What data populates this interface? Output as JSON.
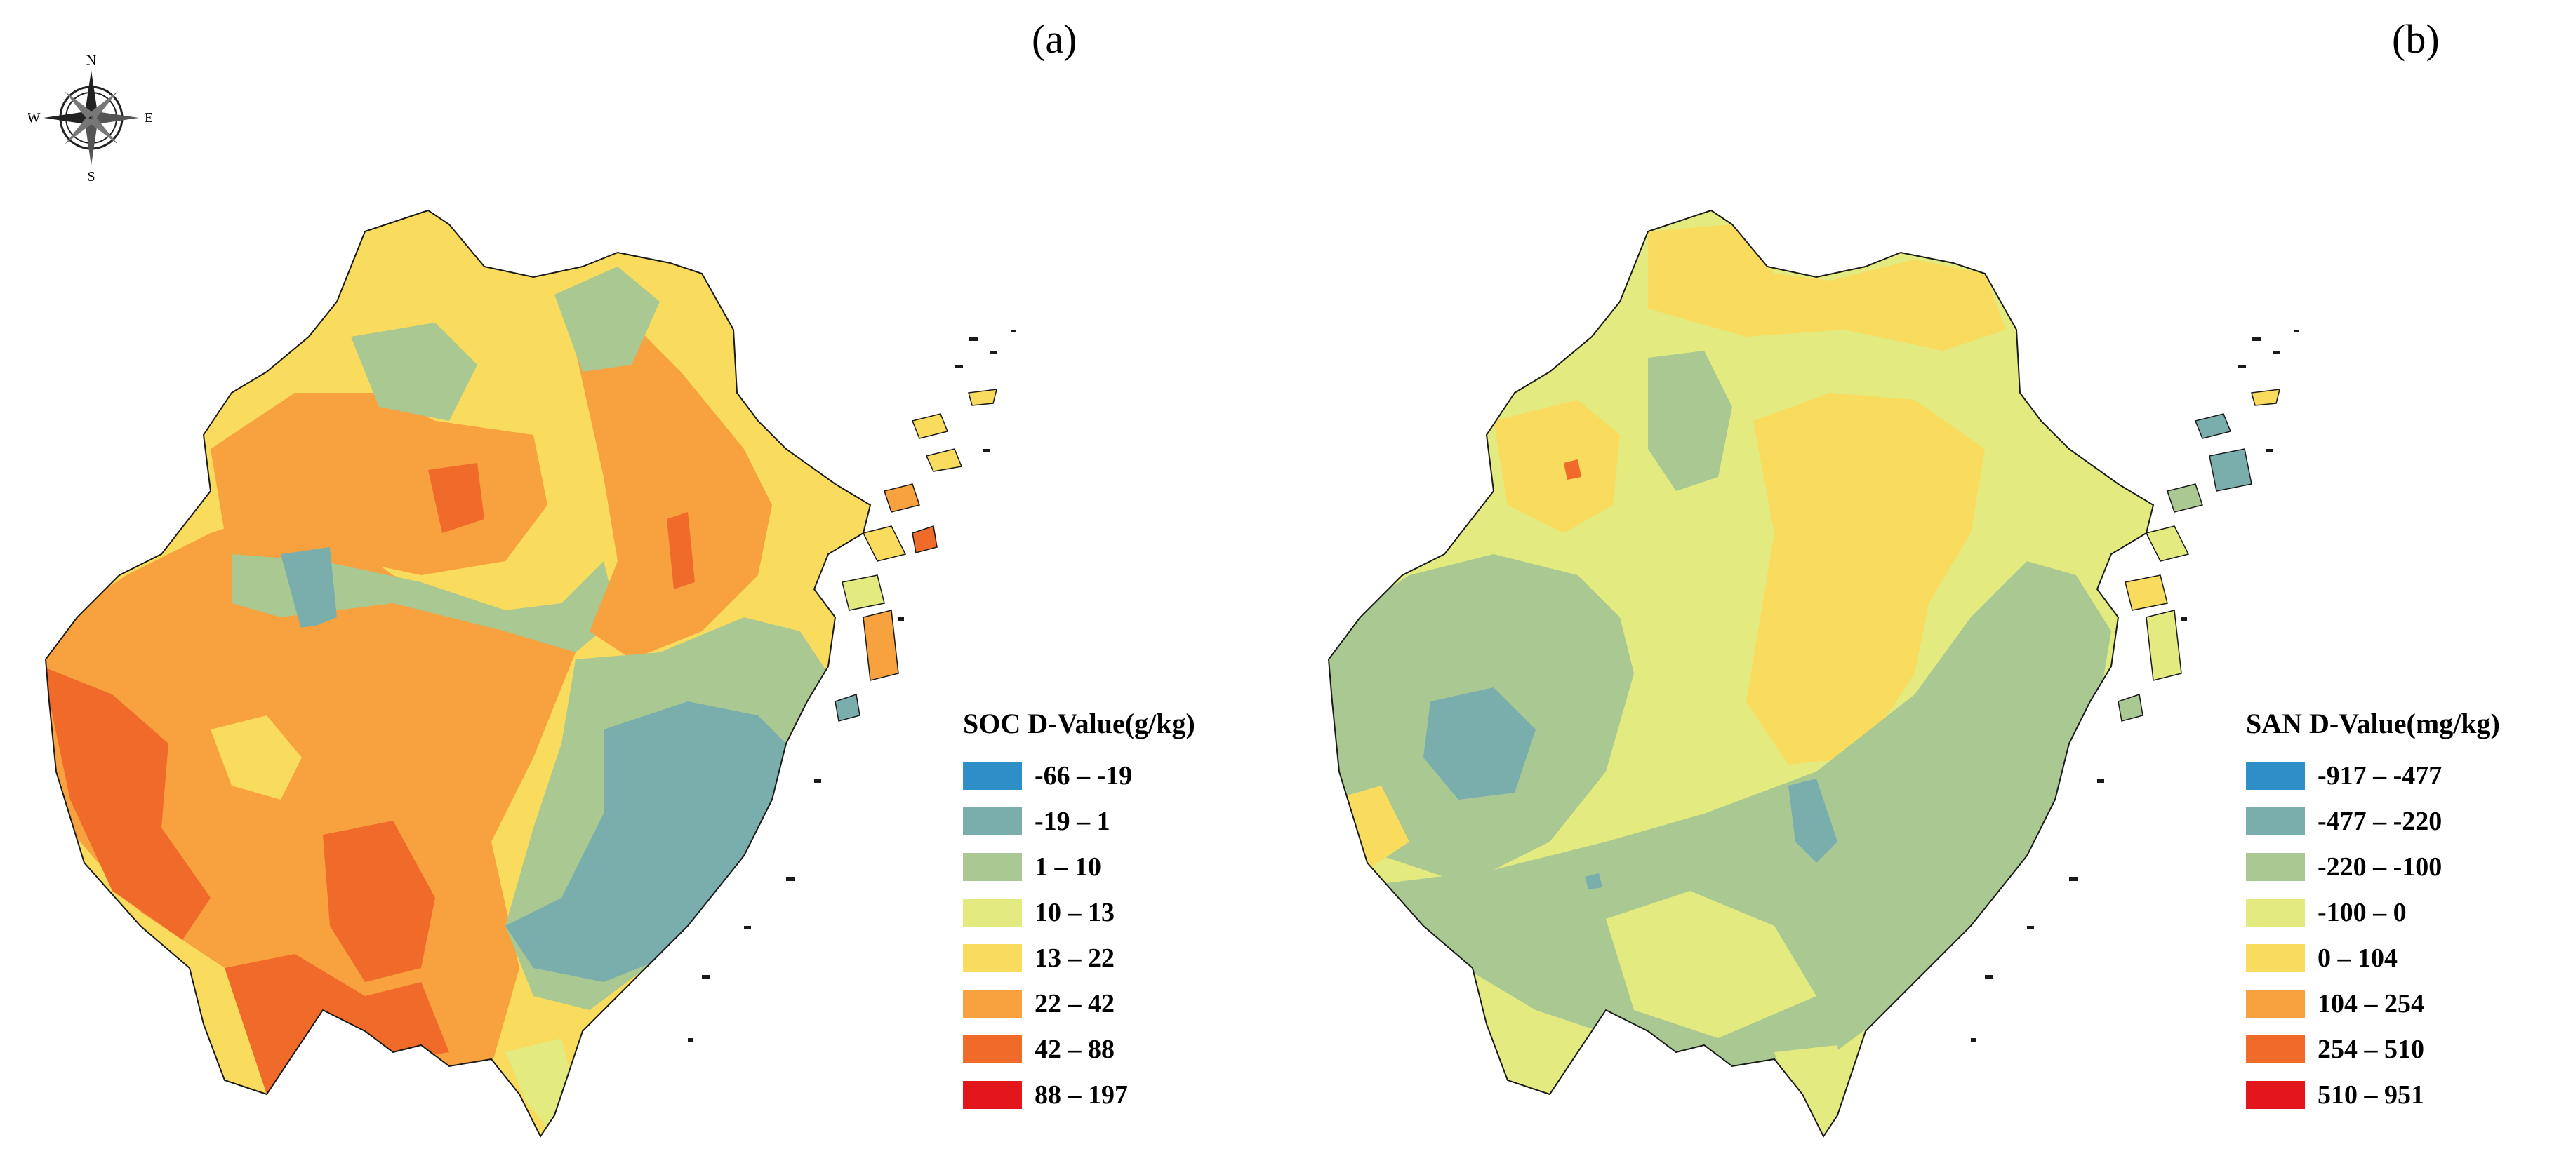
{
  "compass": {
    "n": "N",
    "s": "S",
    "e": "E",
    "w": "W"
  },
  "panels": [
    {
      "label": "(a)",
      "legend": {
        "title": "SOC D-Value(g/kg)",
        "items": [
          {
            "label": "-66 – -19",
            "color": "#2e8fc8"
          },
          {
            "label": "-19 – 1",
            "color": "#7aaead"
          },
          {
            "label": "1 – 10",
            "color": "#a9c892"
          },
          {
            "label": "10 – 13",
            "color": "#e2ea80"
          },
          {
            "label": "13 – 22",
            "color": "#f9db5e"
          },
          {
            "label": "22 – 42",
            "color": "#f7a23e"
          },
          {
            "label": "42 – 88",
            "color": "#f06a2a"
          },
          {
            "label": "88 – 197",
            "color": "#e3161c"
          }
        ]
      }
    },
    {
      "label": "(b)",
      "legend": {
        "title": "SAN D-Value(mg/kg)",
        "items": [
          {
            "label": "-917 – -477",
            "color": "#2e8fc8"
          },
          {
            "label": "-477 – -220",
            "color": "#7aaead"
          },
          {
            "label": "-220 – -100",
            "color": "#a9c892"
          },
          {
            "label": "-100 – 0",
            "color": "#e2ea80"
          },
          {
            "label": "0 – 104",
            "color": "#f9db5e"
          },
          {
            "label": "104 – 254",
            "color": "#f7a23e"
          },
          {
            "label": "254 – 510",
            "color": "#f06a2a"
          },
          {
            "label": "510 – 951",
            "color": "#e3161c"
          }
        ]
      }
    }
  ]
}
